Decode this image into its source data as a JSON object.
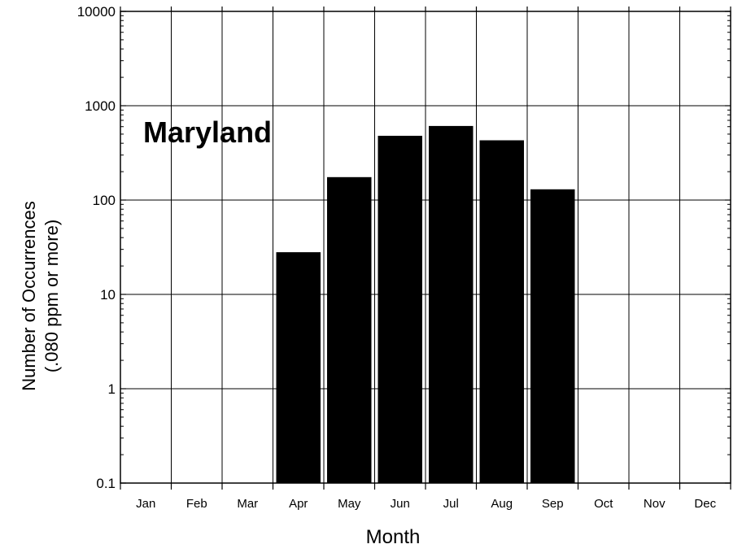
{
  "chart_data": {
    "type": "bar",
    "title": "Maryland",
    "xlabel": "Month",
    "ylabel_line1": "Number of Occurrences",
    "ylabel_line2": "(.080 ppm or more)",
    "y_scale": "log",
    "ylim": [
      0.1,
      10000
    ],
    "y_ticks": [
      0.1,
      1,
      10,
      100,
      1000,
      10000
    ],
    "y_tick_labels": [
      "0.1",
      "1",
      "10",
      "100",
      "1000",
      "10000"
    ],
    "grid": true,
    "categories": [
      "Jan",
      "Feb",
      "Mar",
      "Apr",
      "May",
      "Jun",
      "Jul",
      "Aug",
      "Sep",
      "Oct",
      "Nov",
      "Dec"
    ],
    "values": [
      0,
      0,
      0,
      28,
      175,
      480,
      610,
      430,
      130,
      0,
      0,
      0
    ],
    "bar_color": "#000000"
  }
}
